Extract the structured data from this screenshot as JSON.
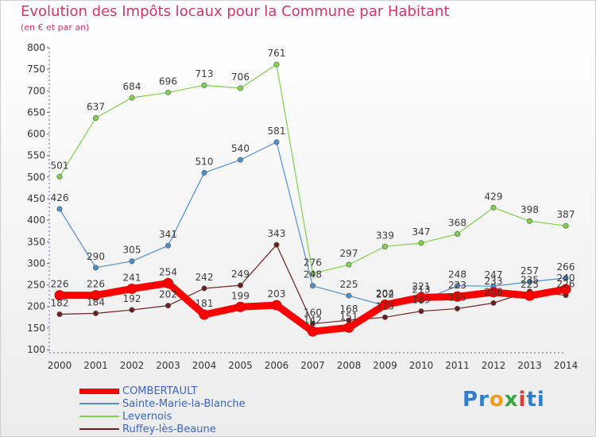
{
  "title": "Evolution des Impôts locaux pour la Commune par Habitant",
  "subtitle": "(en € et par an)",
  "brand": "Proxiti",
  "chart_data": {
    "type": "line",
    "x": [
      "2000",
      "2001",
      "2002",
      "2003",
      "2004",
      "2005",
      "2006",
      "2007",
      "2008",
      "2009",
      "2010",
      "2011",
      "2012",
      "2013",
      "2014"
    ],
    "ylim": [
      100,
      800
    ],
    "yticks": [
      100,
      150,
      200,
      250,
      300,
      350,
      400,
      450,
      500,
      550,
      600,
      650,
      700,
      750,
      800
    ],
    "grid": false,
    "legend": "bottom-left",
    "series": [
      {
        "name": "COMBERTAULT",
        "color": "#ff0000",
        "values": [
          226,
          226,
          241,
          254,
          181,
          199,
          203,
          142,
          151,
          204,
          221,
          223,
          233,
          225,
          240
        ]
      },
      {
        "name": "Sainte-Marie-la-Blanche",
        "color": "#4f8fcf",
        "values": [
          426,
          290,
          305,
          341,
          510,
          540,
          581,
          248,
          225,
          202,
          213,
          248,
          247,
          257,
          266
        ]
      },
      {
        "name": "Levernois",
        "color": "#7fd34b",
        "values": [
          501,
          637,
          684,
          696,
          713,
          706,
          761,
          276,
          297,
          339,
          347,
          368,
          429,
          398,
          387
        ]
      },
      {
        "name": "Ruffey-lès-Beaune",
        "color": "#6b1f1f",
        "values": [
          182,
          184,
          192,
          202,
          242,
          249,
          343,
          160,
          168,
          175,
          189,
          195,
          208,
          235,
          226
        ]
      }
    ]
  }
}
